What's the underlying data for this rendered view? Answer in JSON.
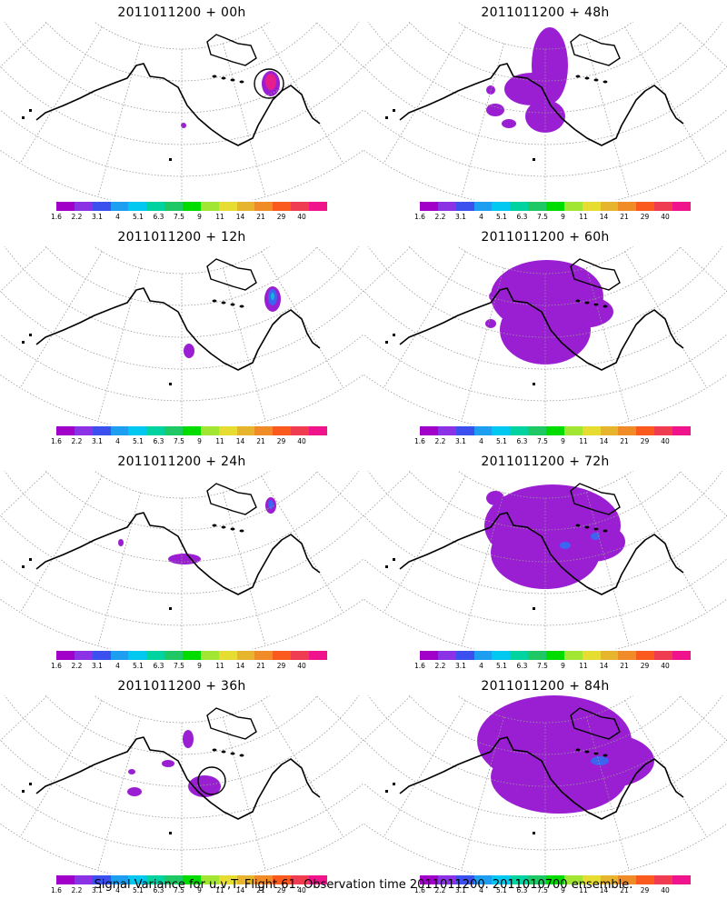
{
  "panels": [
    {
      "title": "2011011200 + 00h",
      "lead": "00h",
      "blobs": [
        {
          "kind": "purple",
          "x": 298,
          "y": 68,
          "rx": 10,
          "ry": 14
        },
        {
          "kind": "magenta",
          "x": 298,
          "y": 66,
          "rx": 6,
          "ry": 9
        },
        {
          "kind": "purple",
          "x": 202,
          "y": 114,
          "rx": 3,
          "ry": 3
        }
      ],
      "circles": [
        {
          "x": 296,
          "y": 68,
          "r": 16
        }
      ]
    },
    {
      "title": "2011011200 + 12h",
      "lead": "12h",
      "blobs": [
        {
          "kind": "purple",
          "x": 300,
          "y": 58,
          "rx": 9,
          "ry": 14
        },
        {
          "kind": "blue",
          "x": 300,
          "y": 56,
          "rx": 5,
          "ry": 9
        },
        {
          "kind": "teal",
          "x": 300,
          "y": 55,
          "rx": 2,
          "ry": 4
        },
        {
          "kind": "purple",
          "x": 208,
          "y": 115,
          "rx": 6,
          "ry": 8
        }
      ],
      "circles": []
    },
    {
      "title": "2011011200 + 24h",
      "lead": "24h",
      "blobs": [
        {
          "kind": "purple",
          "x": 298,
          "y": 38,
          "rx": 6,
          "ry": 9
        },
        {
          "kind": "blue",
          "x": 298,
          "y": 37,
          "rx": 3,
          "ry": 5
        },
        {
          "kind": "purple",
          "x": 203,
          "y": 97,
          "rx": 18,
          "ry": 6
        },
        {
          "kind": "purple",
          "x": 133,
          "y": 79,
          "rx": 3,
          "ry": 4
        }
      ],
      "circles": []
    },
    {
      "title": "2011011200 + 36h",
      "lead": "36h",
      "blobs": [
        {
          "kind": "purple",
          "x": 207,
          "y": 48,
          "rx": 6,
          "ry": 10
        },
        {
          "kind": "purple",
          "x": 185,
          "y": 75,
          "rx": 7,
          "ry": 4
        },
        {
          "kind": "purple",
          "x": 225,
          "y": 100,
          "rx": 18,
          "ry": 12
        },
        {
          "kind": "purple",
          "x": 148,
          "y": 106,
          "rx": 8,
          "ry": 5
        },
        {
          "kind": "purple",
          "x": 145,
          "y": 84,
          "rx": 4,
          "ry": 3
        }
      ],
      "circles": [
        {
          "x": 233,
          "y": 94,
          "r": 15
        }
      ]
    },
    {
      "title": "2011011200 + 48h",
      "lead": "48h",
      "blobs": [
        {
          "kind": "purple",
          "x": 605,
          "y": 48,
          "rx": 20,
          "ry": 42
        },
        {
          "kind": "purple",
          "x": 585,
          "y": 74,
          "rx": 30,
          "ry": 18
        },
        {
          "kind": "purple",
          "x": 600,
          "y": 104,
          "rx": 22,
          "ry": 18
        },
        {
          "kind": "purple",
          "x": 545,
          "y": 97,
          "rx": 10,
          "ry": 7
        },
        {
          "kind": "purple",
          "x": 540,
          "y": 75,
          "rx": 5,
          "ry": 5
        },
        {
          "kind": "purple",
          "x": 560,
          "y": 112,
          "rx": 8,
          "ry": 5
        }
      ],
      "circles": []
    },
    {
      "title": "2011011200 + 60h",
      "lead": "60h",
      "blobs": [
        {
          "kind": "purple",
          "x": 602,
          "y": 55,
          "rx": 62,
          "ry": 40
        },
        {
          "kind": "purple",
          "x": 600,
          "y": 92,
          "rx": 50,
          "ry": 38
        },
        {
          "kind": "purple",
          "x": 640,
          "y": 72,
          "rx": 35,
          "ry": 18
        },
        {
          "kind": "purple",
          "x": 548,
          "y": 55,
          "rx": 10,
          "ry": 7
        },
        {
          "kind": "purple",
          "x": 540,
          "y": 85,
          "rx": 6,
          "ry": 5
        }
      ],
      "circles": []
    },
    {
      "title": "2011011200 + 72h",
      "lead": "72h",
      "blobs": [
        {
          "kind": "purple",
          "x": 608,
          "y": 60,
          "rx": 75,
          "ry": 45
        },
        {
          "kind": "purple",
          "x": 600,
          "y": 90,
          "rx": 60,
          "ry": 40
        },
        {
          "kind": "purple",
          "x": 650,
          "y": 78,
          "rx": 38,
          "ry": 22
        },
        {
          "kind": "purple",
          "x": 545,
          "y": 30,
          "rx": 10,
          "ry": 8
        },
        {
          "kind": "blue",
          "x": 622,
          "y": 82,
          "rx": 6,
          "ry": 4
        },
        {
          "kind": "blue",
          "x": 655,
          "y": 72,
          "rx": 5,
          "ry": 4
        }
      ],
      "circles": []
    },
    {
      "title": "2011011200 + 84h",
      "lead": "84h",
      "blobs": [
        {
          "kind": "purple",
          "x": 610,
          "y": 50,
          "rx": 85,
          "ry": 50
        },
        {
          "kind": "purple",
          "x": 615,
          "y": 90,
          "rx": 75,
          "ry": 40
        },
        {
          "kind": "purple",
          "x": 665,
          "y": 72,
          "rx": 55,
          "ry": 30
        },
        {
          "kind": "purple",
          "x": 555,
          "y": 45,
          "rx": 25,
          "ry": 20
        },
        {
          "kind": "blue",
          "x": 660,
          "y": 72,
          "rx": 10,
          "ry": 5
        }
      ],
      "circles": []
    }
  ],
  "colorbar": {
    "colors": [
      "#a000c8",
      "#8c32e6",
      "#3c50f0",
      "#1e9ef0",
      "#00c8f0",
      "#00d2a0",
      "#1ec864",
      "#00dc00",
      "#a0e632",
      "#e6dc32",
      "#e6b42d",
      "#f08c28",
      "#fa5a1e",
      "#f03c50",
      "#f0148c"
    ],
    "labels": [
      "1.6",
      "2.2",
      "3.1",
      "4",
      "5.1",
      "6.3",
      "7.5",
      "9",
      "11",
      "14",
      "21",
      "29",
      "40"
    ]
  },
  "blob_colors": {
    "purple": "#9a1ed2",
    "magenta": "#e61e8c",
    "blue": "#3c64f0",
    "teal": "#14b4dc"
  },
  "footer": "Signal Variance for u,v,T. Flight 61. Observation time 2011011200. 2011010700 ensemble."
}
